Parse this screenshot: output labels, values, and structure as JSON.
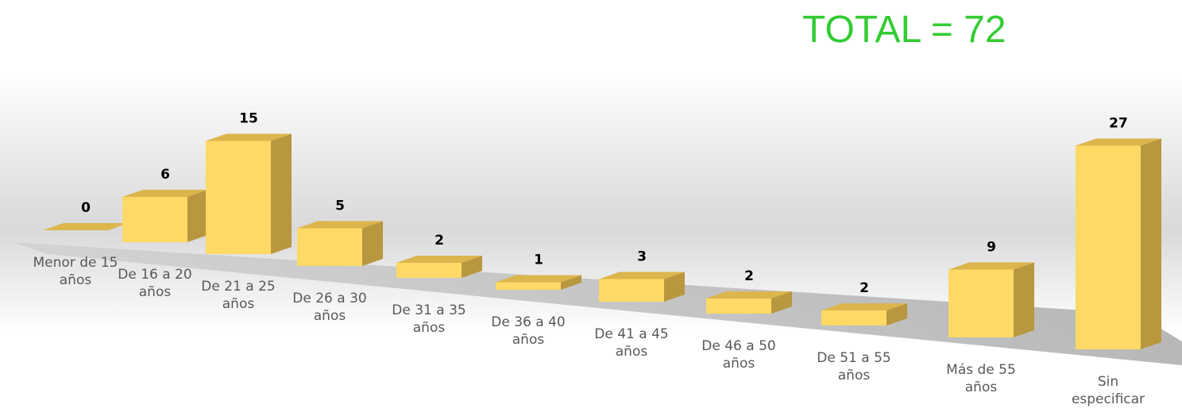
{
  "chart_data": {
    "type": "bar3d",
    "annotation": "TOTAL = 72",
    "categories": [
      "Menor de 15 años",
      "De 16 a 20 años",
      "De 21 a 25 años",
      "De 26 a 30 años",
      "De 31 a 35 años",
      "De 36 a 40 años",
      "De 41 a 45 años",
      "De 46 a 50 años",
      "De 51 a 55 años",
      "Más de 55 años",
      "Sin especificar"
    ],
    "values": [
      0,
      6,
      15,
      5,
      2,
      1,
      3,
      2,
      2,
      9,
      27
    ],
    "color": "#ffd966"
  }
}
